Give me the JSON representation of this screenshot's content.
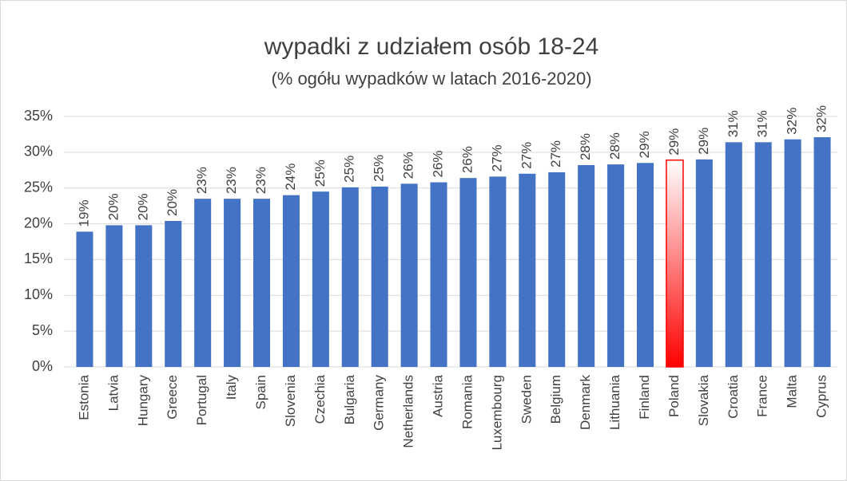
{
  "chart_data": {
    "type": "bar",
    "title": "wypadki z udziałem osób 18-24",
    "subtitle": "(% ogółu wypadków w latach 2016-2020)",
    "categories": [
      "Estonia",
      "Latvia",
      "Hungary",
      "Greece",
      "Portugal",
      "Italy",
      "Spain",
      "Slovenia",
      "Czechia",
      "Bulgaria",
      "Germany",
      "Netherlands",
      "Austria",
      "Romania",
      "Luxembourg",
      "Sweden",
      "Belgium",
      "Denmark",
      "Lithuania",
      "Finland",
      "Poland",
      "Slovakia",
      "Croatia",
      "France",
      "Malta",
      "Cyprus"
    ],
    "values": [
      18.9,
      19.8,
      19.8,
      20.4,
      23.5,
      23.5,
      23.5,
      24.0,
      24.5,
      25.1,
      25.2,
      25.6,
      25.8,
      26.4,
      26.6,
      27.0,
      27.2,
      28.2,
      28.3,
      28.5,
      28.9,
      29.0,
      31.4,
      31.4,
      31.8,
      32.1
    ],
    "value_labels": [
      "19%",
      "20%",
      "20%",
      "20%",
      "23%",
      "23%",
      "23%",
      "24%",
      "25%",
      "25%",
      "25%",
      "26%",
      "26%",
      "26%",
      "27%",
      "27%",
      "27%",
      "28%",
      "28%",
      "29%",
      "29%",
      "29%",
      "31%",
      "31%",
      "32%",
      "32%"
    ],
    "color": "#4472c4",
    "colors": [
      "#4472c4",
      "#4472c4",
      "#4472c4",
      "#4472c4",
      "#4472c4",
      "#4472c4",
      "#4472c4",
      "#4472c4",
      "#4472c4",
      "#4472c4",
      "#4472c4",
      "#4472c4",
      "#4472c4",
      "#4472c4",
      "#4472c4",
      "#4472c4",
      "#4472c4",
      "#4472c4",
      "#4472c4",
      "#4472c4",
      "#ff0000",
      "#4472c4",
      "#4472c4",
      "#4472c4",
      "#4472c4",
      "#4472c4"
    ],
    "ylim": [
      0,
      35
    ],
    "yticks": [
      {
        "value": 0,
        "label": "0%"
      },
      {
        "value": 5,
        "label": "5%"
      },
      {
        "value": 10,
        "label": "10%"
      },
      {
        "value": 15,
        "label": "15%"
      },
      {
        "value": 20,
        "label": "20%"
      },
      {
        "value": 25,
        "label": "25%"
      },
      {
        "value": 30,
        "label": "30%"
      },
      {
        "value": 35,
        "label": "35%"
      }
    ],
    "grid": true
  }
}
